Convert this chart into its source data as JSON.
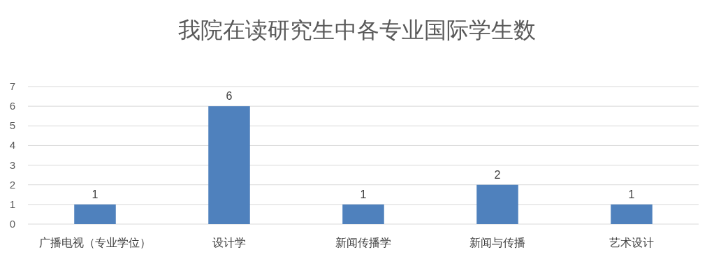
{
  "chart_data": {
    "type": "bar",
    "title": "我院在读研究生中各专业国际学生数",
    "categories": [
      "广播电视（专业学位）",
      "设计学",
      "新闻传播学",
      "新闻与传播",
      "艺术设计"
    ],
    "values": [
      1,
      6,
      1,
      2,
      1
    ],
    "color": "#4f81bd",
    "ylim": [
      0,
      7
    ],
    "yticks": [
      0,
      1,
      2,
      3,
      4,
      5,
      6,
      7
    ],
    "grid": "y",
    "data_labels": true
  }
}
